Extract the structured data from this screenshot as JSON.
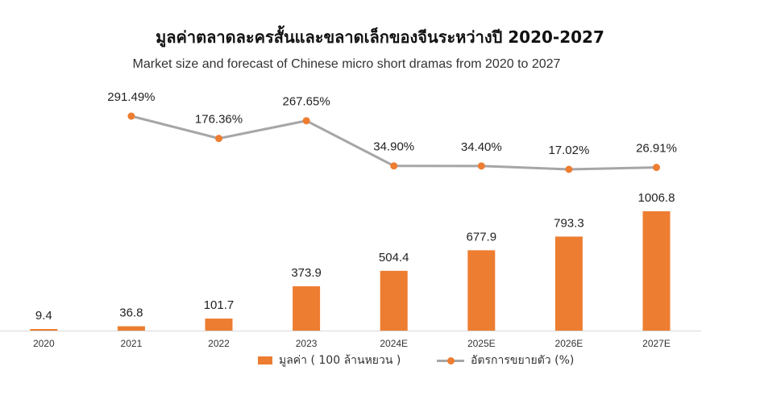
{
  "chart_data": {
    "type": "bar+line",
    "title": "มูลค่าตลาดละครสั้นและขลาดเล็กของจีนระหว่างปี 2020-2027",
    "subtitle": "Market size and forecast of Chinese micro short dramas from 2020 to 2027",
    "categories": [
      "2020",
      "2021",
      "2022",
      "2023",
      "2024E",
      "2025E",
      "2026E",
      "2027E"
    ],
    "series": [
      {
        "name": "มูลค่า ( 100 ล้านหยวน )",
        "type": "bar",
        "color": "#ED7D31",
        "values": [
          9.4,
          36.8,
          101.7,
          373.9,
          504.4,
          677.9,
          793.3,
          1006.8
        ],
        "labels": [
          "9.4",
          "36.8",
          "101.7",
          "373.9",
          "504.4",
          "677.9",
          "793.3",
          "1006.8"
        ]
      },
      {
        "name": "อัตรการขยายตัว (%)",
        "type": "line",
        "color": "#A6A6A6",
        "marker_color": "#ED7D31",
        "values": [
          null,
          291.49,
          176.36,
          267.65,
          34.9,
          34.4,
          17.02,
          26.91
        ],
        "labels": [
          "",
          "291.49%",
          "176.36%",
          "267.65%",
          "34.90%",
          "34.40%",
          "17.02%",
          "26.91%"
        ]
      }
    ],
    "legend_position": "bottom",
    "grid": false
  }
}
